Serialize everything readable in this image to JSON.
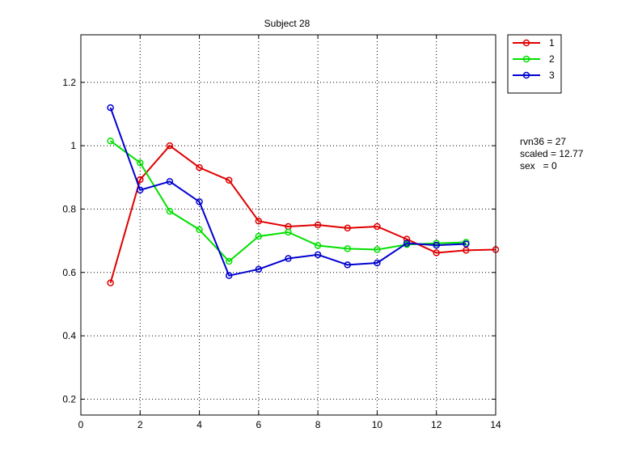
{
  "chart_data": {
    "type": "line",
    "title": "Subject 28",
    "xlabel": "",
    "ylabel": "",
    "xlim": [
      0,
      14
    ],
    "ylim": [
      0.15,
      1.35
    ],
    "xticks": [
      0,
      2,
      4,
      6,
      8,
      10,
      12,
      14
    ],
    "yticks": [
      0.2,
      0.4,
      0.6,
      0.8,
      1,
      1.2
    ],
    "grid": true,
    "grid_style": "dotted",
    "legend_position": "outside-top-right",
    "series": [
      {
        "name": "1",
        "color": "#e00000",
        "marker": "circle",
        "x": [
          1,
          2,
          3,
          4,
          5,
          6,
          7,
          8,
          9,
          10,
          11,
          12,
          13,
          14
        ],
        "y": [
          0.567,
          0.893,
          1.0,
          0.931,
          0.891,
          0.762,
          0.745,
          0.75,
          0.74,
          0.745,
          0.705,
          0.662,
          0.67,
          0.672
        ]
      },
      {
        "name": "2",
        "color": "#00e000",
        "marker": "circle",
        "x": [
          1,
          2,
          3,
          4,
          5,
          6,
          7,
          8,
          9,
          10,
          11,
          12,
          13
        ],
        "y": [
          1.015,
          0.946,
          0.793,
          0.735,
          0.635,
          0.714,
          0.727,
          0.685,
          0.675,
          0.672,
          0.688,
          0.692,
          0.695
        ]
      },
      {
        "name": "3",
        "color": "#0000d0",
        "marker": "circle",
        "x": [
          1,
          2,
          3,
          4,
          5,
          6,
          7,
          8,
          9,
          10,
          11,
          12,
          13
        ],
        "y": [
          1.12,
          0.86,
          0.887,
          0.823,
          0.59,
          0.61,
          0.644,
          0.656,
          0.624,
          0.63,
          0.692,
          0.686,
          0.69
        ]
      }
    ],
    "annotations": [
      "rvn36 = 27",
      "scaled = 12.77",
      "sex   = 0"
    ]
  }
}
